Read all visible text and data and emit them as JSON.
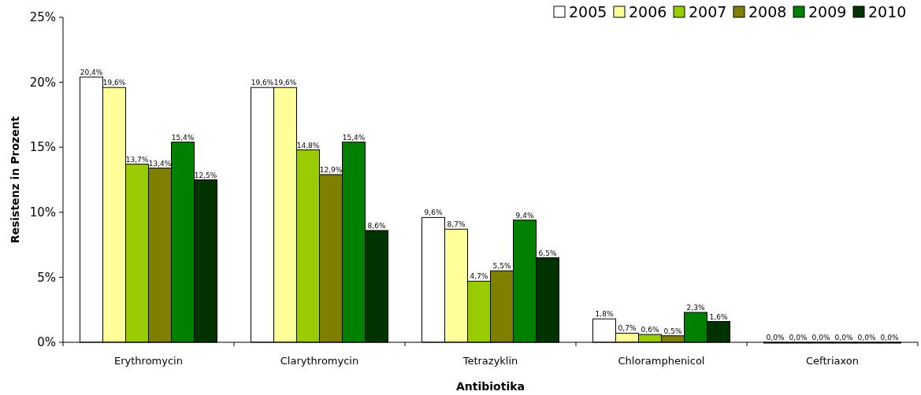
{
  "chart_data": {
    "type": "bar",
    "xlabel": "Antibiotika",
    "ylabel": "Resistenz in Prozent",
    "categories": [
      "Erythromycin",
      "Clarythromycin",
      "Tetrazyklin",
      "Chloramphenicol",
      "Ceftriaxon"
    ],
    "ylim": [
      0,
      25
    ],
    "yticks": [
      {
        "value": 0,
        "label": "0%"
      },
      {
        "value": 5,
        "label": "5%"
      },
      {
        "value": 10,
        "label": "10%"
      },
      {
        "value": 15,
        "label": "15%"
      },
      {
        "value": 20,
        "label": "20%"
      },
      {
        "value": 25,
        "label": "25%"
      }
    ],
    "grid": false,
    "legend": "top right",
    "series": [
      {
        "name": "2005",
        "color": "#ffffff",
        "values": [
          20.4,
          19.6,
          9.6,
          1.8,
          0
        ],
        "value_labels": [
          "20,4%",
          "19,6%",
          "9,6%",
          "1,8%",
          "0,0%"
        ]
      },
      {
        "name": "2006",
        "color": "#ffff99",
        "values": [
          19.6,
          19.6,
          8.7,
          0.7,
          0
        ],
        "value_labels": [
          "19,6%",
          "19,6%",
          "8,7%",
          "0,7%",
          "0,0%"
        ]
      },
      {
        "name": "2007",
        "color": "#99cc00",
        "values": [
          13.7,
          14.8,
          4.7,
          0.6,
          0
        ],
        "value_labels": [
          "13,7%",
          "14,8%",
          "4,7%",
          "0,6%",
          "0,0%"
        ]
      },
      {
        "name": "2008",
        "color": "#808000",
        "values": [
          13.4,
          12.9,
          5.5,
          0.5,
          0
        ],
        "value_labels": [
          "13,4%",
          "12,9%",
          "5,5%",
          "0,5%",
          "0,0%"
        ]
      },
      {
        "name": "2009",
        "color": "#008000",
        "values": [
          15.4,
          15.4,
          9.4,
          2.3,
          0
        ],
        "value_labels": [
          "15,4%",
          "15,4%",
          "9,4%",
          "2,3%",
          "0,0%"
        ]
      },
      {
        "name": "2010",
        "color": "#003300",
        "values": [
          12.5,
          8.6,
          6.5,
          1.6,
          0
        ],
        "value_labels": [
          "12,5%",
          "8,6%",
          "6,5%",
          "1,6%",
          "0,0%"
        ]
      }
    ]
  }
}
